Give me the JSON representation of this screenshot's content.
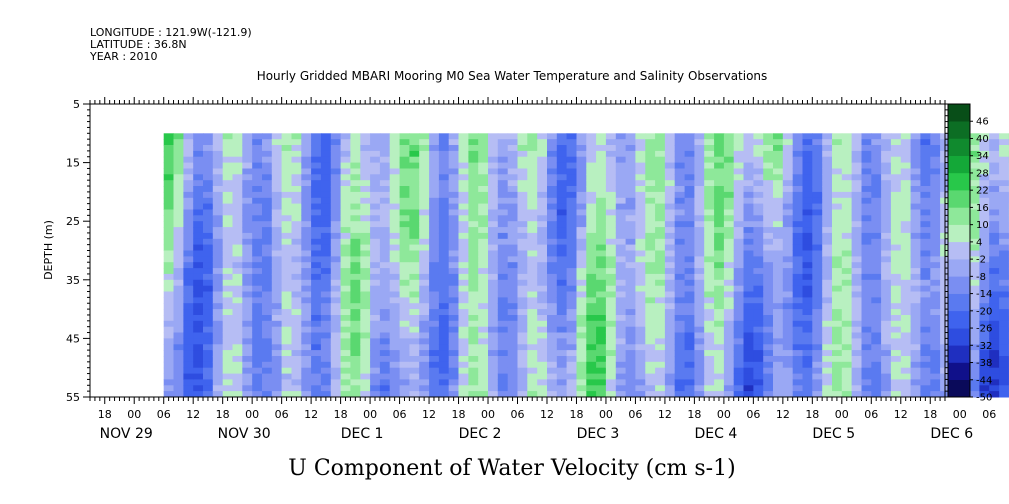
{
  "header": {
    "longitude": "LONGITUDE : 121.9W(-121.9)",
    "latitude": "LATITUDE : 36.8N",
    "year": "YEAR : 2010"
  },
  "chart_data": {
    "type": "heatmap",
    "title": "Hourly Gridded MBARI Mooring M0 Sea Water Temperature and Salinity Observations",
    "xlabel": "U Component of Water Velocity (cm s-1)",
    "ylabel": "DEPTH (m)",
    "ylim": [
      55,
      5
    ],
    "y_ticks": [
      5,
      15,
      25,
      35,
      45,
      55
    ],
    "y_tick_labels": [
      "5",
      "15",
      "25",
      "35",
      "45",
      "55"
    ],
    "x_range_hours": [
      "2010-11-29 09:00",
      "2010-12-06 15:00"
    ],
    "data_range": {
      "depth_start": 10,
      "depth_end": 55,
      "time_start": "2010-11-29 15:00",
      "time_end": "2010-12-06 14:00"
    },
    "hour_labels": [
      "18",
      "00",
      "06",
      "12",
      "18",
      "00",
      "06",
      "12",
      "18",
      "00",
      "06",
      "12",
      "18",
      "00",
      "06",
      "12",
      "18",
      "00",
      "06",
      "12",
      "18",
      "00",
      "06",
      "12",
      "18",
      "00",
      "06",
      "12",
      "18",
      "00",
      "06",
      "12"
    ],
    "hour_values": [
      18,
      24,
      30,
      36,
      42,
      48,
      54,
      60,
      66,
      72,
      78,
      84,
      90,
      96,
      102,
      108,
      114,
      120,
      126,
      132,
      138,
      144,
      150,
      156,
      162,
      168,
      174,
      180,
      186,
      192,
      198,
      204
    ],
    "date_labels": [
      "NOV 29",
      "NOV 30",
      "DEC  1",
      "DEC  2",
      "DEC  3",
      "DEC  4",
      "DEC  5",
      "DEC  6"
    ],
    "date_hours": [
      0,
      24,
      48,
      72,
      96,
      120,
      144,
      168
    ],
    "colorbar": {
      "levels": [
        -50,
        -44,
        -38,
        -32,
        -26,
        -20,
        -14,
        -8,
        -2,
        4,
        10,
        16,
        22,
        28,
        34,
        40,
        46
      ],
      "labels": [
        "-50",
        "-44",
        "-38",
        "-32",
        "-26",
        "-20",
        "-14",
        "-8",
        "-2",
        "4",
        "10",
        "16",
        "22",
        "28",
        "34",
        "40",
        "46"
      ],
      "colors": [
        "#0a0a5a",
        "#10108a",
        "#1f2fc0",
        "#2e4de0",
        "#3f63ee",
        "#5a7af0",
        "#7a8ef2",
        "#9aa8f4",
        "#b6bdf4",
        "#b8f0c0",
        "#8ee89a",
        "#5ad870",
        "#28c84a",
        "#14a838",
        "#108a2e",
        "#0c6e24",
        "#084e18"
      ]
    },
    "green_bands_hours": [
      3,
      10,
      22,
      35,
      46,
      59,
      70,
      83,
      94,
      107,
      118,
      131,
      142,
      155,
      166,
      178
    ],
    "blue_bands_hours": [
      14,
      28,
      40,
      52,
      64,
      77,
      88,
      101,
      112,
      125,
      136,
      149,
      160,
      172,
      180
    ],
    "deep_blue_region_hours": [
      155,
      180
    ]
  }
}
